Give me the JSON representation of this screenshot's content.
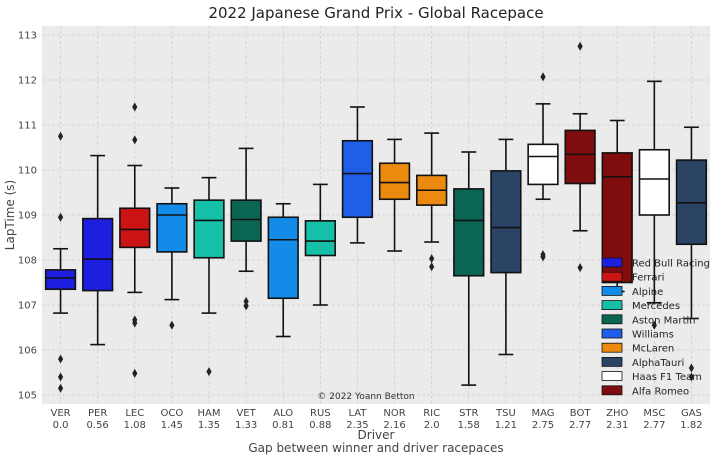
{
  "chart_data": {
    "type": "box",
    "title": "2022 Japanese Grand Prix - Global Racepace",
    "xlabel": "Driver",
    "xlabel_sub": "Gap between winner and driver racepaces",
    "ylabel": "LapTime (s)",
    "ylim": [
      104.8,
      113.2
    ],
    "yticks": [
      105,
      106,
      107,
      108,
      109,
      110,
      111,
      112,
      113
    ],
    "grid": true,
    "legend_position": "lower-right",
    "watermark": "© 2022 Yoann Betton",
    "teams": [
      {
        "name": "Red Bull Racing",
        "color": "#1e1ee0"
      },
      {
        "name": "Ferrari",
        "color": "#cc1414"
      },
      {
        "name": "Alpine",
        "color": "#128ce8"
      },
      {
        "name": "Mercedes",
        "color": "#16bfa8"
      },
      {
        "name": "Aston Martin",
        "color": "#0a6652"
      },
      {
        "name": "Williams",
        "color": "#1f5fe8"
      },
      {
        "name": "McLaren",
        "color": "#ec8a10"
      },
      {
        "name": "AlphaTauri",
        "color": "#2b4466"
      },
      {
        "name": "Haas F1 Team",
        "color": "#ffffff"
      },
      {
        "name": "Alfa Romeo",
        "color": "#800d0d"
      }
    ],
    "drivers": [
      {
        "code": "VER",
        "gap": "0.0",
        "team": "Red Bull Racing",
        "whisker_low": 106.82,
        "q1": 107.35,
        "median": 107.6,
        "q3": 107.78,
        "whisker_high": 108.25,
        "outliers": [
          110.75,
          108.95,
          105.8,
          105.4,
          105.15
        ]
      },
      {
        "code": "PER",
        "gap": "0.56",
        "team": "Red Bull Racing",
        "whisker_low": 106.12,
        "q1": 107.32,
        "median": 108.02,
        "q3": 108.92,
        "whisker_high": 110.32,
        "outliers": []
      },
      {
        "code": "LEC",
        "gap": "1.08",
        "team": "Ferrari",
        "whisker_low": 107.28,
        "q1": 108.28,
        "median": 108.68,
        "q3": 109.15,
        "whisker_high": 110.1,
        "outliers": [
          111.4,
          110.67,
          106.67,
          106.6,
          105.48
        ]
      },
      {
        "code": "OCO",
        "gap": "1.45",
        "team": "Alpine",
        "whisker_low": 107.12,
        "q1": 108.18,
        "median": 109.0,
        "q3": 109.25,
        "whisker_high": 109.6,
        "outliers": [
          106.55
        ]
      },
      {
        "code": "HAM",
        "gap": "1.35",
        "team": "Mercedes",
        "whisker_low": 106.82,
        "q1": 108.05,
        "median": 108.88,
        "q3": 109.33,
        "whisker_high": 109.83,
        "outliers": [
          105.52
        ]
      },
      {
        "code": "VET",
        "gap": "1.33",
        "team": "Aston Martin",
        "whisker_low": 107.75,
        "q1": 108.42,
        "median": 108.9,
        "q3": 109.33,
        "whisker_high": 110.48,
        "outliers": [
          107.08,
          106.98
        ]
      },
      {
        "code": "ALO",
        "gap": "0.81",
        "team": "Alpine",
        "whisker_low": 106.3,
        "q1": 107.15,
        "median": 108.45,
        "q3": 108.95,
        "whisker_high": 109.25,
        "outliers": []
      },
      {
        "code": "RUS",
        "gap": "0.88",
        "team": "Mercedes",
        "whisker_low": 107.0,
        "q1": 108.1,
        "median": 108.42,
        "q3": 108.87,
        "whisker_high": 109.68,
        "outliers": []
      },
      {
        "code": "LAT",
        "gap": "2.35",
        "team": "Williams",
        "whisker_low": 108.38,
        "q1": 108.95,
        "median": 109.92,
        "q3": 110.65,
        "whisker_high": 111.4,
        "outliers": []
      },
      {
        "code": "NOR",
        "gap": "2.16",
        "team": "McLaren",
        "whisker_low": 108.2,
        "q1": 109.35,
        "median": 109.72,
        "q3": 110.15,
        "whisker_high": 110.68,
        "outliers": []
      },
      {
        "code": "RIC",
        "gap": "2.0",
        "team": "McLaren",
        "whisker_low": 108.4,
        "q1": 109.22,
        "median": 109.55,
        "q3": 109.88,
        "whisker_high": 110.82,
        "outliers": [
          108.03,
          107.85
        ]
      },
      {
        "code": "STR",
        "gap": "1.58",
        "team": "Aston Martin",
        "whisker_low": 105.22,
        "q1": 107.65,
        "median": 108.88,
        "q3": 109.58,
        "whisker_high": 110.4,
        "outliers": []
      },
      {
        "code": "TSU",
        "gap": "1.21",
        "team": "AlphaTauri",
        "whisker_low": 105.9,
        "q1": 107.72,
        "median": 108.72,
        "q3": 109.98,
        "whisker_high": 110.68,
        "outliers": []
      },
      {
        "code": "MAG",
        "gap": "2.75",
        "team": "Haas F1 Team",
        "whisker_low": 109.35,
        "q1": 109.68,
        "median": 110.3,
        "q3": 110.57,
        "whisker_high": 111.47,
        "outliers": [
          112.07,
          108.12,
          108.07
        ]
      },
      {
        "code": "BOT",
        "gap": "2.77",
        "team": "Alfa Romeo",
        "whisker_low": 108.65,
        "q1": 109.7,
        "median": 110.35,
        "q3": 110.88,
        "whisker_high": 111.25,
        "outliers": [
          112.75,
          107.83
        ]
      },
      {
        "code": "ZHO",
        "gap": "2.31",
        "team": "Alfa Romeo",
        "whisker_low": 107.3,
        "q1": 107.5,
        "median": 109.85,
        "q3": 110.38,
        "whisker_high": 111.1,
        "outliers": []
      },
      {
        "code": "MSC",
        "gap": "2.77",
        "team": "Haas F1 Team",
        "whisker_low": 107.05,
        "q1": 109.0,
        "median": 109.8,
        "q3": 110.45,
        "whisker_high": 111.97,
        "outliers": [
          106.55
        ]
      },
      {
        "code": "GAS",
        "gap": "1.82",
        "team": "AlphaTauri",
        "whisker_low": 106.7,
        "q1": 108.35,
        "median": 109.27,
        "q3": 110.22,
        "whisker_high": 110.95,
        "outliers": [
          105.6,
          105.4
        ]
      }
    ]
  }
}
